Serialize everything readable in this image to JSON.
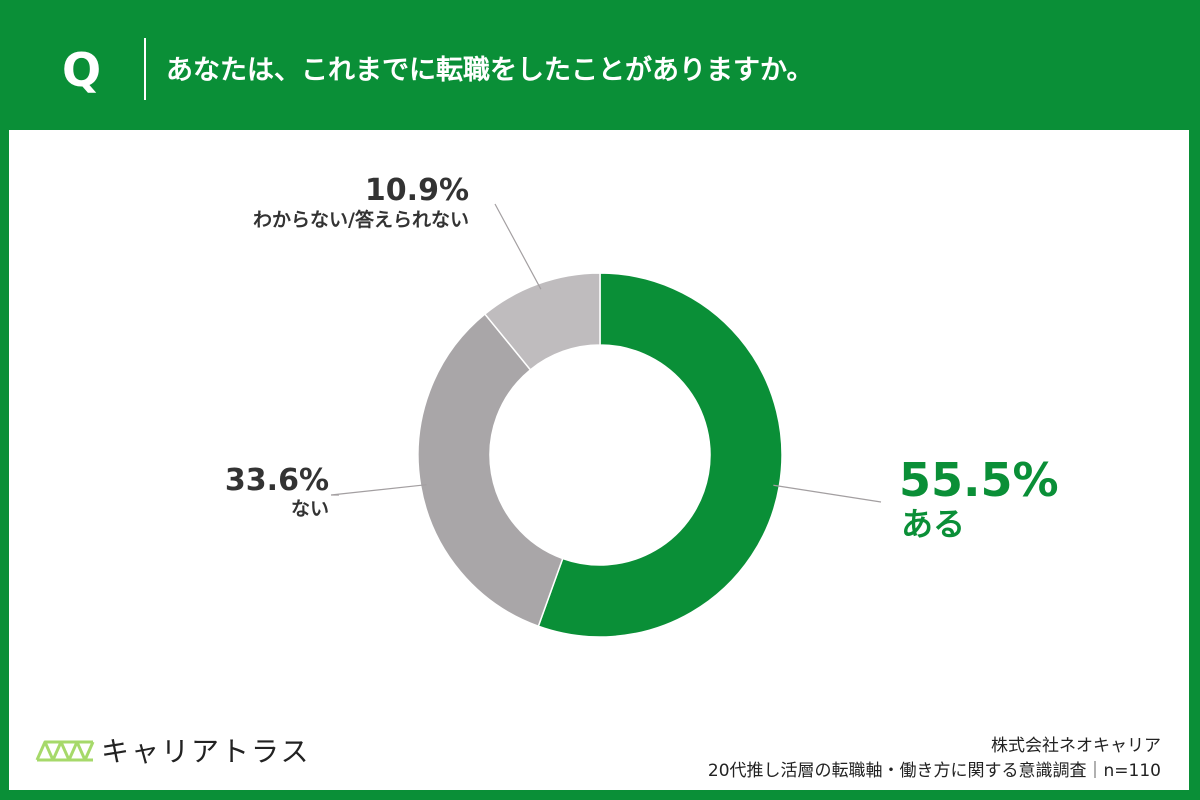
{
  "header": {
    "q_mark": "Q",
    "question": "あなたは、これまでに転職をしたことがありますか。"
  },
  "colors": {
    "brand_green": "#0a8f37",
    "gray_dark": "#a9a6a8",
    "gray_light": "#bfbcbe",
    "text": "#333333",
    "logo_green": "#a6d96a"
  },
  "chart_data": {
    "type": "pie",
    "donut": true,
    "unit": "%",
    "start_angle_deg": 0,
    "direction": "clockwise",
    "slices": [
      {
        "label": "ある",
        "value": 55.5,
        "display": "55.5%",
        "color": "#0a8f37",
        "emphasis": true
      },
      {
        "label": "ない",
        "value": 33.6,
        "display": "33.6%",
        "color": "#a9a6a8",
        "emphasis": false
      },
      {
        "label": "わからない/答えられない",
        "value": 10.9,
        "display": "10.9%",
        "color": "#bfbcbe",
        "emphasis": false
      }
    ],
    "legend": "none"
  },
  "footer": {
    "logo_icon": "bridge-truss-icon",
    "logo_text": "キャリアトラス",
    "source_company": "株式会社ネオキャリア",
    "source_survey": "20代推し活層の転職軸・働き方に関する意識調査｜n=110"
  }
}
